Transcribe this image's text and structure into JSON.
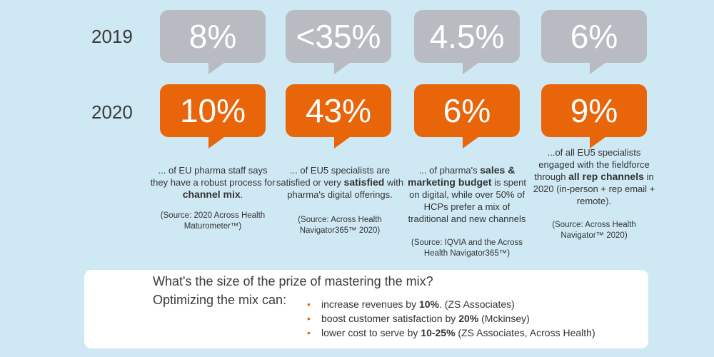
{
  "years": [
    "2019",
    "2020"
  ],
  "stats": [
    {
      "v2019": "8%",
      "v2020": "10%",
      "desc_pre": "... of EU pharma staff says they have a robust process for ",
      "desc_bold": "channel mix",
      "desc_post": ".",
      "source": "(Source: 2020 Across Health Maturometer™)"
    },
    {
      "v2019": "<35%",
      "v2020": "43%",
      "desc_pre": "... of EU5 specialists are satisfied or very ",
      "desc_bold": "satisfied",
      "desc_post": " with pharma's digital offerings.",
      "source": "(Source: Across Health Navigator365™ 2020)"
    },
    {
      "v2019": "4.5%",
      "v2020": "6%",
      "desc_pre": "... of pharma's ",
      "desc_bold": "sales & marketing budget",
      "desc_post": " is spent on digital, while over 50% of HCPs prefer a mix of traditional and new channels",
      "source": "(Source: IQVIA and the Across Health Navigator365™)"
    },
    {
      "v2019": "6%",
      "v2020": "9%",
      "desc_pre": "...of all EU5 specialists engaged with the fieldforce through ",
      "desc_bold": "all rep channels",
      "desc_post": " in 2020 (in-person + rep email + remote).",
      "source": "(Source: Across Health Navigator™ 2020)"
    }
  ],
  "prize": {
    "question": "What's the size of the prize of mastering the mix?",
    "optimizing": "Optimizing the mix can:",
    "items": [
      {
        "pre": "increase revenues by ",
        "bold": "10%",
        "post": ".  (ZS Associates)"
      },
      {
        "pre": "boost customer satisfaction by ",
        "bold": "20%",
        "post": " (Mckinsey)"
      },
      {
        "pre": "lower cost to serve by ",
        "bold": "10-25%",
        "post": " (ZS Associates, Across Health)"
      }
    ]
  },
  "colors": {
    "grey": "#b8bbc1",
    "orange": "#e8650a",
    "background": "#cfe9f4"
  }
}
